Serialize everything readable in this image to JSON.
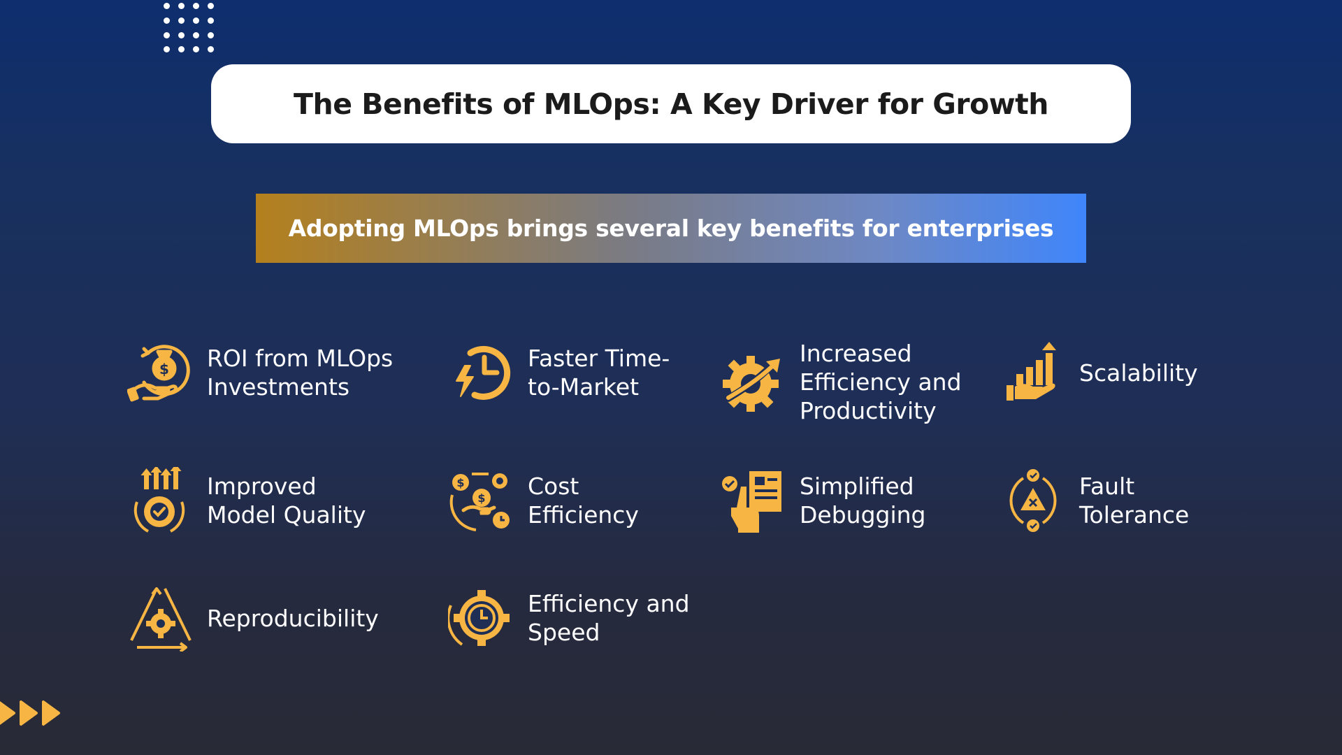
{
  "title": "The Benefits of MLOps: A Key Driver for Growth",
  "subtitle": "Adopting MLOps brings several key benefits for enterprises",
  "colors": {
    "icon": "#f7b644",
    "subtitle_gradient_start": "#b4801d",
    "subtitle_gradient_end": "#3f86fb",
    "background_top": "#0e2e6e",
    "background_bottom": "#282a36"
  },
  "benefits": [
    {
      "label": "ROI from MLOps\nInvestments",
      "icon": "money-bag-hand-icon"
    },
    {
      "label": "Faster Time-\nto-Market",
      "icon": "clock-lightning-icon"
    },
    {
      "label": "Increased\nEfficiency and\nProductivity",
      "icon": "gear-growth-icon"
    },
    {
      "label": "Scalability",
      "icon": "hand-bar-chart-icon"
    },
    {
      "label": "Improved\nModel Quality",
      "icon": "gear-check-arrows-icon"
    },
    {
      "label": "Cost\nEfficiency",
      "icon": "money-gear-cycle-icon"
    },
    {
      "label": "Simplified\nDebugging",
      "icon": "hand-document-check-icon"
    },
    {
      "label": "Fault\nTolerance",
      "icon": "warning-cycle-icon"
    },
    {
      "label": "Reproducibility",
      "icon": "gear-triangle-cycle-icon"
    },
    {
      "label": "Efficiency and\nSpeed",
      "icon": "stopwatch-gear-icon"
    }
  ]
}
